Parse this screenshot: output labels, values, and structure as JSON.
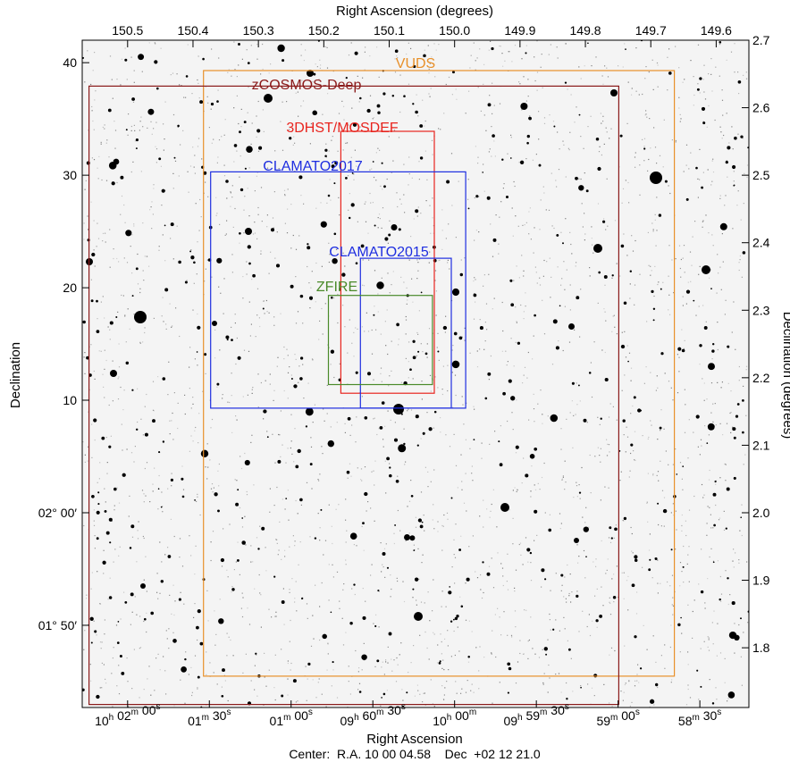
{
  "figure": {
    "top_axis_title": "Right Ascension (degrees)",
    "bottom_axis_title": "Right Ascension",
    "left_axis_title": "Declination",
    "right_axis_title": "Declination (degrees)",
    "center_text": "Center:  R.A. 10 00 04.58    Dec  +02 12 21.0"
  },
  "top_ticks": [
    {
      "label": "150.5",
      "ra": 150.5
    },
    {
      "label": "150.4",
      "ra": 150.4
    },
    {
      "label": "150.3",
      "ra": 150.3
    },
    {
      "label": "150.2",
      "ra": 150.2
    },
    {
      "label": "150.1",
      "ra": 150.1
    },
    {
      "label": "150.0",
      "ra": 150.0
    },
    {
      "label": "149.9",
      "ra": 149.9
    },
    {
      "label": "149.8",
      "ra": 149.8
    },
    {
      "label": "149.7",
      "ra": 149.7
    },
    {
      "label": "149.6",
      "ra": 149.6
    }
  ],
  "right_ticks": [
    {
      "label": "2.7",
      "dec": 2.7
    },
    {
      "label": "2.6",
      "dec": 2.6
    },
    {
      "label": "2.5",
      "dec": 2.5
    },
    {
      "label": "2.4",
      "dec": 2.4
    },
    {
      "label": "2.3",
      "dec": 2.3
    },
    {
      "label": "2.2",
      "dec": 2.2
    },
    {
      "label": "2.1",
      "dec": 2.1
    },
    {
      "label": "2.0",
      "dec": 2.0
    },
    {
      "label": "1.9",
      "dec": 1.9
    },
    {
      "label": "1.8",
      "dec": 1.8
    }
  ],
  "left_ticks": [
    {
      "label": "40",
      "dec": 2.6667
    },
    {
      "label": "30",
      "dec": 2.5
    },
    {
      "label": "20",
      "dec": 2.3333
    },
    {
      "label": "10",
      "dec": 2.1667
    },
    {
      "label": "02° 00′",
      "dec": 2.0
    },
    {
      "label": "01° 50′",
      "dec": 1.8333
    }
  ],
  "bottom_ticks": [
    {
      "h": "10",
      "m": "02",
      "s": "00",
      "ra": 150.5
    },
    {
      "h": "",
      "m": "01",
      "s": "30",
      "ra": 150.375
    },
    {
      "h": "",
      "m": "01",
      "s": "00",
      "ra": 150.25
    },
    {
      "h": "",
      "m": "60",
      "s": "30",
      "prefix": "09",
      "ra": 150.125
    },
    {
      "h": "10",
      "m": "00",
      "s": "",
      "ra": 150.0
    },
    {
      "h": "09",
      "m": "59",
      "s": "30",
      "ra": 149.875
    },
    {
      "h": "",
      "m": "59",
      "s": "00",
      "ra": 149.75
    },
    {
      "h": "",
      "m": "58",
      "s": "30",
      "ra": 149.625
    }
  ],
  "surveys": [
    {
      "name": "VUDS",
      "color": "#e8902a",
      "ra_max": 150.384,
      "ra_min": 149.664,
      "dec_max": 2.655,
      "dec_min": 1.758
    },
    {
      "name": "zCOSMOS-Deep",
      "color": "#8b1a1a",
      "ra_max": 150.559,
      "ra_min": 149.749,
      "dec_max": 2.632,
      "dec_min": 1.716
    },
    {
      "name": "3DHST/MOSDEF",
      "color": "#e8241e",
      "ra_max": 150.174,
      "ra_min": 150.031,
      "dec_max": 2.565,
      "dec_min": 2.177
    },
    {
      "name": "CLAMATO2017",
      "color": "#1e2ee0",
      "ra_max": 150.373,
      "ra_min": 149.983,
      "dec_max": 2.505,
      "dec_min": 2.155
    },
    {
      "name": "CLAMATO2015",
      "color": "#1e2ee0",
      "ra_max": 150.144,
      "ra_min": 150.005,
      "dec_max": 2.377,
      "dec_min": 2.155
    },
    {
      "name": "ZFIRE",
      "color": "#4a8a2a",
      "ra_max": 150.193,
      "ra_min": 150.034,
      "dec_max": 2.322,
      "dec_min": 2.19
    }
  ]
}
